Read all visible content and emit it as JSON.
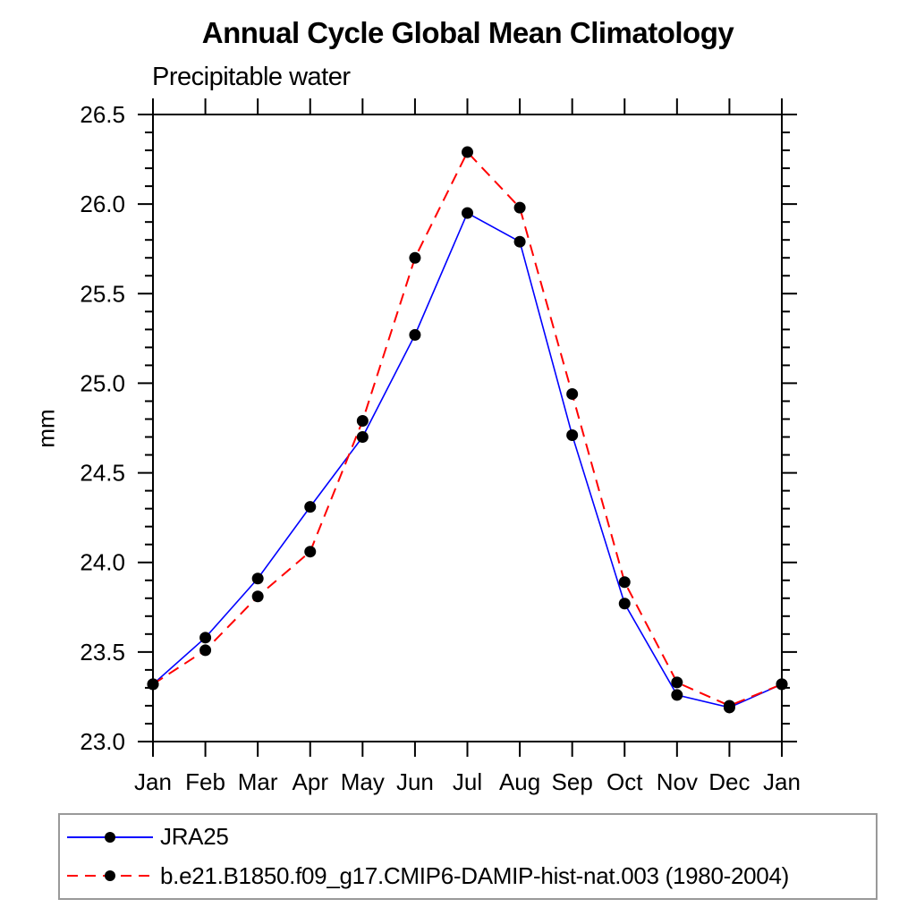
{
  "title": "Annual Cycle Global Mean Climatology",
  "subtitle": "Precipitable water",
  "chart_data": {
    "type": "line",
    "title": "Annual Cycle Global Mean Climatology",
    "subtitle": "Precipitable water",
    "xlabel": "",
    "ylabel": "mm",
    "x_tick_labels": [
      "Jan",
      "Feb",
      "Mar",
      "Apr",
      "May",
      "Jun",
      "Jul",
      "Aug",
      "Sep",
      "Oct",
      "Nov",
      "Dec",
      "Jan"
    ],
    "ylim": [
      23.0,
      26.5
    ],
    "ytick_step": 0.5,
    "yminor_step": 0.1,
    "ytick_labels": [
      "23.0",
      "23.5",
      "24.0",
      "24.5",
      "25.0",
      "25.5",
      "26.0",
      "26.5"
    ],
    "grid": false,
    "legend_position": "bottom-left-box",
    "frame_color": "#000000",
    "marker_color": "#000000",
    "legend_border_color": "#999999",
    "series": [
      {
        "name": "JRA25",
        "color": "#0000ff",
        "line_style": "solid",
        "marker": "filled-circle",
        "values": [
          23.32,
          23.58,
          23.91,
          24.31,
          24.7,
          25.27,
          25.95,
          25.79,
          24.71,
          23.77,
          23.26,
          23.19,
          23.32
        ]
      },
      {
        "name": "b.e21.B1850.f09_g17.CMIP6-DAMIP-hist-nat.003 (1980-2004)",
        "color": "#ff0000",
        "line_style": "dashed",
        "marker": "filled-circle",
        "values": [
          23.32,
          23.51,
          23.81,
          24.06,
          24.79,
          25.7,
          26.29,
          25.98,
          24.94,
          23.89,
          23.33,
          23.2,
          23.32
        ]
      }
    ]
  }
}
